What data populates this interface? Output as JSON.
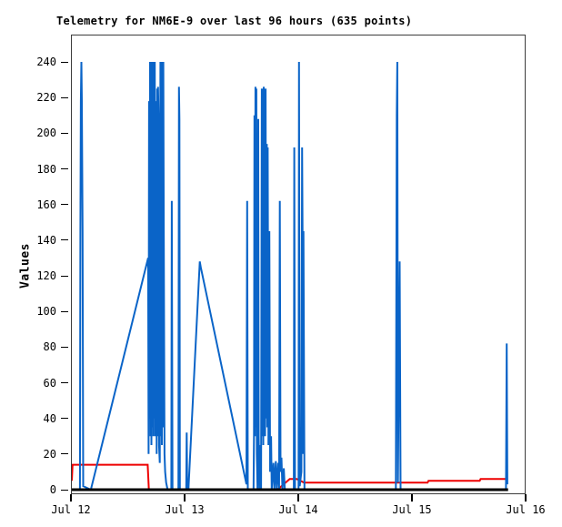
{
  "chart_data": {
    "type": "line",
    "title": "Telemetry for NM6E-9 over last 96 hours (635 points)",
    "ylabel": "Values",
    "xlabel": "",
    "x_unit": "hours since Jul 12 00:00",
    "xlim": [
      0,
      96
    ],
    "ylim": [
      0,
      252
    ],
    "grid": false,
    "legend": "none",
    "frame_color": "#3c3c3c",
    "tick_color": "#000000",
    "y_ticks": [
      0,
      20,
      40,
      60,
      80,
      100,
      120,
      140,
      160,
      180,
      200,
      220,
      240
    ],
    "x_ticks": [
      {
        "label": "Jul 12",
        "hour": 0
      },
      {
        "label": "Jul 13",
        "hour": 24
      },
      {
        "label": "Jul 14",
        "hour": 48
      },
      {
        "label": "Jul 15",
        "hour": 72
      },
      {
        "label": "Jul 16",
        "hour": 96
      }
    ],
    "series": [
      {
        "name": "series-red",
        "color": "#ee0000",
        "stroke_width": 2,
        "points": [
          [
            0.2,
            5
          ],
          [
            0.35,
            14
          ],
          [
            16.2,
            14
          ],
          [
            16.45,
            0
          ],
          [
            43.6,
            0
          ],
          [
            46.2,
            6
          ],
          [
            47.7,
            6
          ],
          [
            49.2,
            4
          ],
          [
            75.3,
            4
          ],
          [
            75.5,
            5
          ],
          [
            86.3,
            5
          ],
          [
            86.5,
            6
          ],
          [
            92.2,
            6
          ]
        ]
      },
      {
        "name": "series-blue",
        "color": "#0a64c8",
        "stroke_width": 2,
        "points": [
          [
            0,
            0
          ],
          [
            1.9,
            0
          ],
          [
            2.0,
            145
          ],
          [
            2.1,
            218
          ],
          [
            2.2,
            240
          ],
          [
            2.3,
            218
          ],
          [
            2.45,
            145
          ],
          [
            2.6,
            2
          ],
          [
            4.2,
            0
          ],
          [
            16.3,
            130
          ],
          [
            16.4,
            20
          ],
          [
            16.5,
            218
          ],
          [
            16.6,
            40
          ],
          [
            16.7,
            240
          ],
          [
            16.8,
            30
          ],
          [
            16.9,
            240
          ],
          [
            17.0,
            25
          ],
          [
            17.1,
            240
          ],
          [
            17.2,
            35
          ],
          [
            17.3,
            240
          ],
          [
            17.4,
            30
          ],
          [
            17.5,
            240
          ],
          [
            17.6,
            40
          ],
          [
            17.7,
            240
          ],
          [
            17.8,
            30
          ],
          [
            17.9,
            218
          ],
          [
            18.0,
            145
          ],
          [
            18.1,
            20
          ],
          [
            18.2,
            225
          ],
          [
            18.3,
            30
          ],
          [
            18.4,
            226
          ],
          [
            18.5,
            208
          ],
          [
            18.6,
            25
          ],
          [
            18.75,
            15
          ],
          [
            18.9,
            240
          ],
          [
            19.0,
            30
          ],
          [
            19.1,
            240
          ],
          [
            19.2,
            25
          ],
          [
            19.3,
            240
          ],
          [
            19.4,
            35
          ],
          [
            19.5,
            240
          ],
          [
            19.6,
            145
          ],
          [
            19.75,
            20
          ],
          [
            19.9,
            10
          ],
          [
            20.1,
            4
          ],
          [
            20.4,
            0
          ],
          [
            21.2,
            0
          ],
          [
            21.3,
            162
          ],
          [
            21.45,
            0
          ],
          [
            22.7,
            0
          ],
          [
            22.8,
            226
          ],
          [
            22.9,
            208
          ],
          [
            23.0,
            0
          ],
          [
            24.35,
            0
          ],
          [
            24.45,
            32
          ],
          [
            24.55,
            0
          ],
          [
            24.8,
            0
          ],
          [
            27.2,
            128
          ],
          [
            27.4,
            125
          ],
          [
            37.05,
            3
          ],
          [
            37.2,
            162
          ],
          [
            37.35,
            0
          ],
          [
            38.55,
            0
          ],
          [
            38.65,
            30
          ],
          [
            38.75,
            210
          ],
          [
            38.85,
            30
          ],
          [
            38.95,
            226
          ],
          [
            39.05,
            35
          ],
          [
            39.15,
            225
          ],
          [
            39.25,
            20
          ],
          [
            39.4,
            0
          ],
          [
            39.55,
            208
          ],
          [
            39.65,
            30
          ],
          [
            39.8,
            0
          ],
          [
            40.0,
            25
          ],
          [
            40.15,
            0
          ],
          [
            40.3,
            225
          ],
          [
            40.4,
            30
          ],
          [
            40.5,
            225
          ],
          [
            40.6,
            25
          ],
          [
            40.7,
            226
          ],
          [
            40.8,
            35
          ],
          [
            40.9,
            225
          ],
          [
            41.0,
            30
          ],
          [
            41.1,
            225
          ],
          [
            41.2,
            40
          ],
          [
            41.35,
            194
          ],
          [
            41.45,
            35
          ],
          [
            41.55,
            192
          ],
          [
            41.7,
            25
          ],
          [
            41.9,
            145
          ],
          [
            42.05,
            10
          ],
          [
            42.25,
            30
          ],
          [
            42.4,
            0
          ],
          [
            42.75,
            15
          ],
          [
            42.95,
            0
          ],
          [
            43.25,
            16
          ],
          [
            43.45,
            0
          ],
          [
            43.75,
            15
          ],
          [
            43.95,
            0
          ],
          [
            44.1,
            162
          ],
          [
            44.25,
            10
          ],
          [
            44.45,
            18
          ],
          [
            44.65,
            0
          ],
          [
            44.95,
            12
          ],
          [
            45.15,
            0
          ],
          [
            47.05,
            0
          ],
          [
            47.15,
            192
          ],
          [
            47.3,
            0
          ],
          [
            48.05,
            0
          ],
          [
            48.15,
            240
          ],
          [
            48.3,
            2
          ],
          [
            48.65,
            10
          ],
          [
            48.8,
            192
          ],
          [
            48.9,
            145
          ],
          [
            49.0,
            20
          ],
          [
            49.1,
            145
          ],
          [
            49.3,
            0
          ],
          [
            68.6,
            0
          ],
          [
            68.8,
            210
          ],
          [
            68.9,
            240
          ],
          [
            69.05,
            4
          ],
          [
            69.4,
            128
          ],
          [
            69.6,
            0
          ],
          [
            91.85,
            0
          ],
          [
            92.0,
            82
          ],
          [
            92.15,
            3
          ]
        ]
      },
      {
        "name": "series-black",
        "color": "#000000",
        "stroke_width": 3,
        "points": [
          [
            0,
            0
          ],
          [
            92.3,
            0
          ]
        ]
      }
    ]
  }
}
